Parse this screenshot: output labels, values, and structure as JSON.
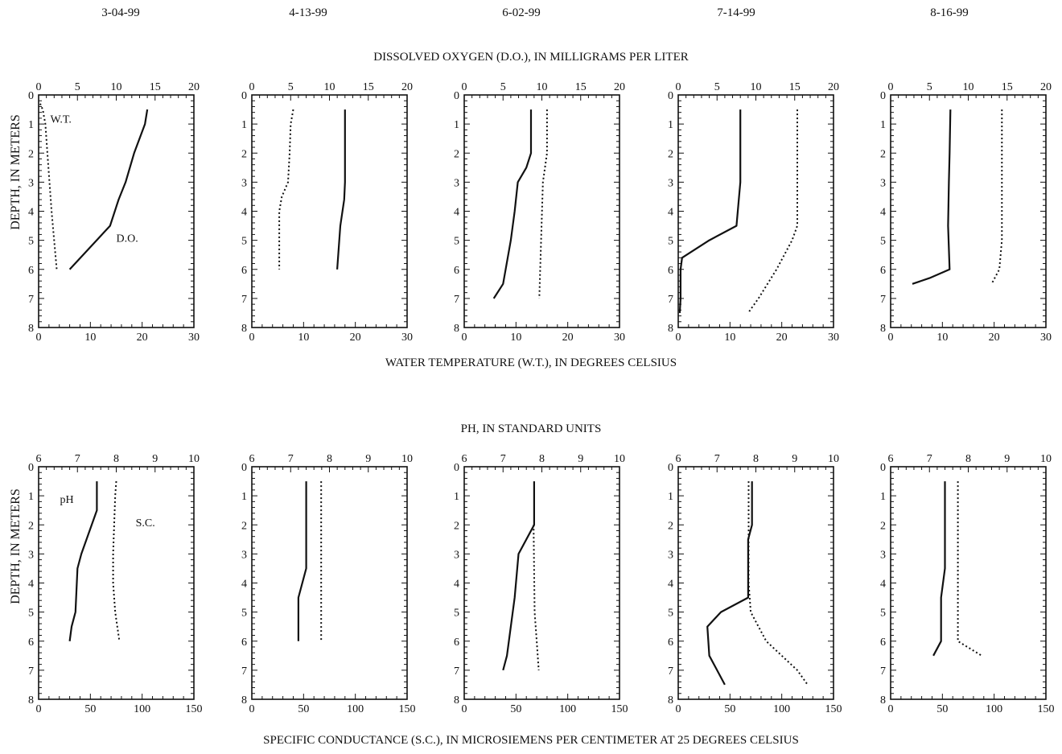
{
  "dates": [
    "3-04-99",
    "4-13-99",
    "6-02-99",
    "7-14-99",
    "8-16-99"
  ],
  "labels": {
    "do_axis": "DISSOLVED OXYGEN (D.O.), IN MILLIGRAMS PER LITER",
    "wt_axis": "WATER TEMPERATURE (W.T.), IN DEGREES CELSIUS",
    "ph_axis": "PH, IN STANDARD UNITS",
    "sc_axis": "SPECIFIC CONDUCTANCE (S.C.), IN MICROSIEMENS PER CENTIMETER AT 25 DEGREES CELSIUS",
    "depth_top": "DEPTH, IN METERS",
    "depth_bottom": "DEPTH, IN METERS"
  },
  "chart_data": [
    {
      "type": "line",
      "row": "top",
      "top_axis": {
        "ticks": [
          "0",
          "5",
          "10",
          "15",
          "20"
        ],
        "range": [
          0,
          20
        ]
      },
      "bottom_axis": {
        "ticks": [
          "0",
          "10",
          "20",
          "30"
        ],
        "range": [
          0,
          30
        ]
      },
      "y_axis": {
        "ticks": [
          "0",
          "1",
          "2",
          "3",
          "4",
          "5",
          "6",
          "7",
          "8"
        ],
        "range": [
          0,
          8
        ],
        "inverted": true
      },
      "annotations": [
        {
          "text": "W.T.",
          "panel": 0,
          "x_top": 1.5,
          "depth": 0.95
        },
        {
          "text": "D.O.",
          "panel": 0,
          "x_top": 10.0,
          "depth": 5.05
        }
      ],
      "panels": [
        {
          "date": "3-04-99",
          "solid": {
            "depth": [
              0.5,
              1,
              2,
              3,
              3.6,
              4.5,
              6
            ],
            "values": [
              14,
              13.7,
              12.3,
              11.2,
              10.3,
              9.2,
              4
            ]
          },
          "dotted": {
            "depth": [
              0.3,
              0.5,
              1,
              2,
              3,
              4,
              5,
              6
            ],
            "values": [
              0.3,
              0.8,
              1.3,
              1.7,
              2.1,
              2.5,
              3,
              3.5
            ]
          }
        },
        {
          "date": "4-13-99",
          "solid": {
            "depth": [
              0.5,
              1,
              2,
              3,
              3.6,
              4.5,
              6
            ],
            "values": [
              12,
              12,
              12,
              12,
              11.9,
              11.4,
              11
            ]
          },
          "dotted": {
            "depth": [
              0.5,
              1,
              2,
              3,
              3.5,
              4,
              6
            ],
            "values": [
              8,
              7.5,
              7.3,
              7,
              5.8,
              5.3,
              5.3
            ]
          }
        },
        {
          "date": "6-02-99",
          "solid": {
            "depth": [
              0.5,
              1,
              2,
              2.5,
              3,
              4,
              5,
              6.5,
              7
            ],
            "values": [
              8.6,
              8.6,
              8.6,
              8,
              6.9,
              6.5,
              6,
              5,
              3.8
            ]
          },
          "dotted": {
            "depth": [
              0.5,
              2,
              3,
              7
            ],
            "values": [
              16,
              16,
              15.2,
              14.5
            ]
          }
        },
        {
          "date": "7-14-99",
          "solid": {
            "depth": [
              0.5,
              2,
              3,
              4.5,
              5,
              5.6,
              6,
              7,
              7.5
            ],
            "values": [
              8,
              8,
              8,
              7.5,
              4,
              0.5,
              0.3,
              0.3,
              0.2
            ]
          },
          "dotted": {
            "depth": [
              0.5,
              2,
              3,
              4.5,
              5,
              6,
              7,
              7.5
            ],
            "values": [
              23,
              23,
              23,
              23,
              22,
              19,
              15.5,
              13.5
            ]
          }
        },
        {
          "date": "8-16-99",
          "solid": {
            "depth": [
              0.5,
              2,
              3,
              4.5,
              6,
              6.3,
              6.5
            ],
            "values": [
              7.7,
              7.6,
              7.5,
              7.4,
              7.6,
              5,
              2.8
            ]
          },
          "dotted": {
            "depth": [
              0.5,
              2,
              3,
              5,
              6,
              6.5
            ],
            "values": [
              21.5,
              21.5,
              21.5,
              21.5,
              21,
              19.5
            ]
          }
        }
      ]
    },
    {
      "type": "line",
      "row": "bottom",
      "top_axis": {
        "ticks": [
          "6",
          "7",
          "8",
          "9",
          "10"
        ],
        "range": [
          6,
          10
        ]
      },
      "bottom_axis": {
        "ticks": [
          "0",
          "50",
          "100",
          "150"
        ],
        "range": [
          0,
          150
        ]
      },
      "y_axis": {
        "ticks": [
          "0",
          "1",
          "2",
          "3",
          "4",
          "5",
          "6",
          "7",
          "8"
        ],
        "range": [
          0,
          8
        ],
        "inverted": true
      },
      "annotations": [
        {
          "text": "pH",
          "panel": 0,
          "x_top": 6.55,
          "depth": 1.25
        },
        {
          "text": "S.C.",
          "panel": 0,
          "x_top": 8.5,
          "depth": 2.05
        }
      ],
      "panels": [
        {
          "date": "3-04-99",
          "solid": {
            "depth": [
              0.5,
              1.5,
              3,
              3.5,
              5,
              5.5,
              6
            ],
            "values": [
              7.5,
              7.5,
              7.1,
              7,
              6.95,
              6.85,
              6.8
            ]
          },
          "dotted": {
            "depth": [
              0.5,
              1,
              2,
              3,
              4,
              5,
              5.5,
              6
            ],
            "values": [
              75,
              74,
              73,
              72,
              72,
              74,
              76,
              78
            ]
          }
        },
        {
          "date": "4-13-99",
          "solid": {
            "depth": [
              0.5,
              2,
              3.5,
              4.5,
              6
            ],
            "values": [
              7.4,
              7.4,
              7.4,
              7.2,
              7.2
            ]
          },
          "dotted": {
            "depth": [
              0.5,
              6
            ],
            "values": [
              67,
              67
            ]
          }
        },
        {
          "date": "6-02-99",
          "solid": {
            "depth": [
              0.5,
              2,
              3,
              4.5,
              5.5,
              6.5,
              7
            ],
            "values": [
              7.8,
              7.8,
              7.4,
              7.3,
              7.2,
              7.1,
              7
            ]
          },
          "dotted": {
            "depth": [
              2,
              5,
              6,
              7
            ],
            "values": [
              67,
              68,
              70,
              72
            ]
          }
        },
        {
          "date": "7-14-99",
          "solid": {
            "depth": [
              0.5,
              2,
              2.5,
              4.5,
              5,
              5.5,
              6.5,
              7,
              7.5
            ],
            "values": [
              7.9,
              7.9,
              7.8,
              7.8,
              7.1,
              6.75,
              6.8,
              7,
              7.2
            ]
          },
          "dotted": {
            "depth": [
              0.5,
              4,
              5,
              6,
              7,
              7.5
            ],
            "values": [
              68,
              68,
              70,
              85,
              115,
              125
            ]
          }
        },
        {
          "date": "8-16-99",
          "solid": {
            "depth": [
              0.5,
              2,
              3.5,
              4.5,
              6,
              6.5
            ],
            "values": [
              7.4,
              7.4,
              7.4,
              7.3,
              7.3,
              7.1
            ]
          },
          "dotted": {
            "depth": [
              0.5,
              3,
              6,
              6.5
            ],
            "values": [
              65,
              65,
              65,
              88
            ]
          }
        }
      ]
    }
  ]
}
